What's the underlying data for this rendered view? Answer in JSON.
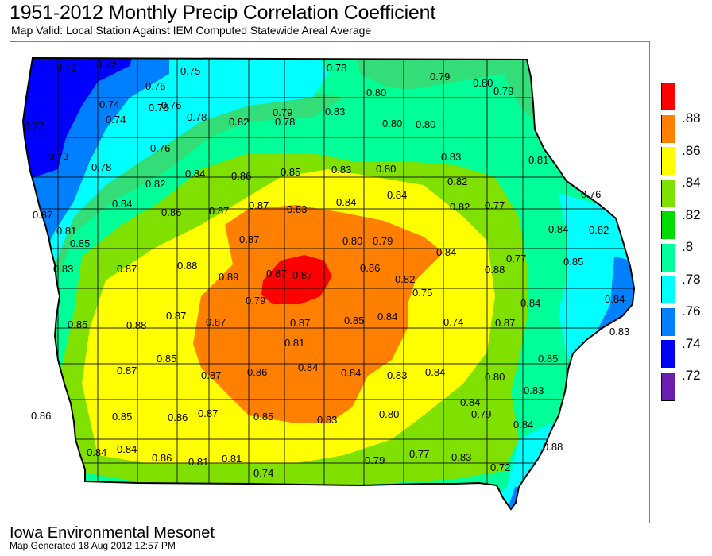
{
  "title": "1951-2012 Monthly Precip Correlation Coefficient",
  "subtitle": "Map Valid: Local Station Against IEM Computed Statewide Areal Average",
  "footer": {
    "org": "Iowa Environmental Mesonet",
    "generated": "Map Generated 18 Aug 2012 12:57 PM"
  },
  "legend": {
    "items": [
      {
        "label": ".88",
        "color": "#ff0000"
      },
      {
        "label": ".86",
        "color": "#ff8000"
      },
      {
        "label": ".84",
        "color": "#ffff00"
      },
      {
        "label": ".82",
        "color": "#80e000"
      },
      {
        "label": ".8",
        "color": "#00dc00"
      },
      {
        "label": ".78",
        "color": "#00ff99"
      },
      {
        "label": ".76",
        "color": "#00ffff"
      },
      {
        "label": ".74",
        "color": "#0080ff"
      },
      {
        "label": ".72",
        "color": "#0000ff"
      },
      {
        "label": "",
        "color": "#6a1fb0"
      }
    ]
  },
  "stations": [
    "0.73",
    "0.72",
    "0.75",
    "0.78",
    "0.79",
    "0.80",
    "0.79",
    "0.74",
    "0.76",
    "0.76",
    "0.80",
    "0.74",
    "0.76",
    "0.79",
    "0.72",
    "0.78",
    "0.82",
    "0.78",
    "0.80",
    "0.80",
    "0.73",
    "0.76",
    "0.83",
    "0.83",
    "0.81",
    "0.78",
    "0.82",
    "0.84",
    "0.86",
    "0.85",
    "0.83",
    "0.80",
    "0.82",
    "0.81",
    "0.84",
    "0.86",
    "0.87",
    "0.87",
    "0.83",
    "0.84",
    "0.84",
    "0.82",
    "0.77",
    "0.76",
    "0.87",
    "0.87",
    "0.80",
    "0.79",
    "0.84",
    "0.82",
    "0.85",
    "0.83",
    "0.87",
    "0.88",
    "0.89",
    "0.87",
    "0.87",
    "0.86",
    "0.82",
    "0.84",
    "0.77",
    "0.88",
    "0.85",
    "0.79",
    "0.75",
    "0.84",
    "0.84",
    "0.85",
    "0.88",
    "0.87",
    "0.87",
    "0.87",
    "0.85",
    "0.84",
    "0.74",
    "0.87",
    "0.83",
    "0.81",
    "0.85",
    "0.85",
    "0.87",
    "0.87",
    "0.86",
    "0.84",
    "0.84",
    "0.83",
    "0.84",
    "0.80",
    "0.84",
    "0.83",
    "0.86",
    "0.85",
    "0.86",
    "0.87",
    "0.85",
    "0.83",
    "0.80",
    "0.79",
    "0.84",
    "0.84",
    "0.84",
    "0.86",
    "0.81",
    "0.81",
    "0.79",
    "0.77",
    "0.83",
    "0.88",
    "0.74",
    "0.72"
  ]
}
